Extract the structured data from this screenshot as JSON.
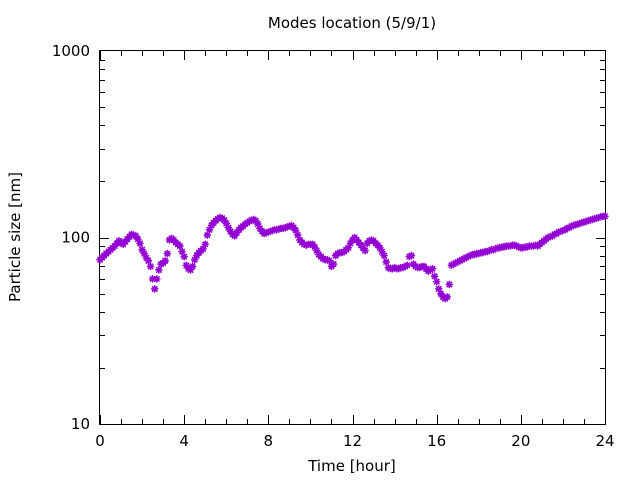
{
  "chart_data": {
    "type": "scatter",
    "title": "Modes location (5/9/1)",
    "xlabel": "Time [hour]",
    "ylabel": "Particle size [nm]",
    "xlim": [
      0,
      24
    ],
    "ylim": [
      10,
      1000
    ],
    "yscale": "log",
    "grid": false,
    "legend": "none",
    "color": "#9400d3",
    "xticks": [
      "0",
      "4",
      "8",
      "12",
      "16",
      "20",
      "24"
    ],
    "yticks": [
      "10",
      "100",
      "1000"
    ],
    "series": [
      {
        "points": [
          [
            0.0,
            76
          ],
          [
            0.1,
            78
          ],
          [
            0.2,
            80
          ],
          [
            0.3,
            82
          ],
          [
            0.4,
            84
          ],
          [
            0.5,
            86
          ],
          [
            0.6,
            88
          ],
          [
            0.7,
            90
          ],
          [
            0.8,
            93
          ],
          [
            0.9,
            96
          ],
          [
            1.0,
            94
          ],
          [
            1.1,
            92
          ],
          [
            1.2,
            95
          ],
          [
            1.3,
            98
          ],
          [
            1.4,
            101
          ],
          [
            1.5,
            104
          ],
          [
            1.6,
            103
          ],
          [
            1.7,
            102
          ],
          [
            1.8,
            98
          ],
          [
            1.9,
            93
          ],
          [
            2.0,
            86
          ],
          [
            2.1,
            82
          ],
          [
            2.2,
            78
          ],
          [
            2.3,
            75
          ],
          [
            2.4,
            70
          ],
          [
            2.5,
            60
          ],
          [
            2.6,
            53
          ],
          [
            2.7,
            60
          ],
          [
            2.8,
            67
          ],
          [
            2.9,
            72
          ],
          [
            3.0,
            73
          ],
          [
            3.1,
            75
          ],
          [
            3.2,
            82
          ],
          [
            3.3,
            97
          ],
          [
            3.4,
            99
          ],
          [
            3.5,
            97
          ],
          [
            3.6,
            94
          ],
          [
            3.7,
            92
          ],
          [
            3.8,
            90
          ],
          [
            3.9,
            84
          ],
          [
            4.0,
            79
          ],
          [
            4.1,
            71
          ],
          [
            4.2,
            68
          ],
          [
            4.3,
            67
          ],
          [
            4.4,
            70
          ],
          [
            4.5,
            76
          ],
          [
            4.6,
            80
          ],
          [
            4.7,
            83
          ],
          [
            4.8,
            85
          ],
          [
            4.9,
            87
          ],
          [
            5.0,
            92
          ],
          [
            5.1,
            103
          ],
          [
            5.2,
            110
          ],
          [
            5.3,
            116
          ],
          [
            5.4,
            120
          ],
          [
            5.5,
            123
          ],
          [
            5.6,
            126
          ],
          [
            5.7,
            128
          ],
          [
            5.8,
            127
          ],
          [
            5.9,
            124
          ],
          [
            6.0,
            119
          ],
          [
            6.1,
            113
          ],
          [
            6.2,
            108
          ],
          [
            6.3,
            104
          ],
          [
            6.4,
            102
          ],
          [
            6.5,
            106
          ],
          [
            6.6,
            110
          ],
          [
            6.7,
            113
          ],
          [
            6.8,
            115
          ],
          [
            6.9,
            118
          ],
          [
            7.0,
            120
          ],
          [
            7.1,
            122
          ],
          [
            7.2,
            124
          ],
          [
            7.3,
            125
          ],
          [
            7.4,
            123
          ],
          [
            7.5,
            118
          ],
          [
            7.6,
            112
          ],
          [
            7.7,
            108
          ],
          [
            7.8,
            105
          ],
          [
            7.9,
            106
          ],
          [
            8.0,
            107
          ],
          [
            8.1,
            108
          ],
          [
            8.2,
            109
          ],
          [
            8.3,
            110
          ],
          [
            8.4,
            110
          ],
          [
            8.5,
            111
          ],
          [
            8.6,
            112
          ],
          [
            8.7,
            112
          ],
          [
            8.8,
            113
          ],
          [
            8.9,
            114
          ],
          [
            9.0,
            115
          ],
          [
            9.1,
            116
          ],
          [
            9.2,
            113
          ],
          [
            9.3,
            109
          ],
          [
            9.4,
            103
          ],
          [
            9.5,
            97
          ],
          [
            9.6,
            94
          ],
          [
            9.7,
            92
          ],
          [
            9.8,
            91
          ],
          [
            9.9,
            92
          ],
          [
            10.0,
            92
          ],
          [
            10.1,
            92
          ],
          [
            10.2,
            89
          ],
          [
            10.3,
            85
          ],
          [
            10.4,
            81
          ],
          [
            10.5,
            79
          ],
          [
            10.6,
            77
          ],
          [
            10.7,
            76
          ],
          [
            10.8,
            76
          ],
          [
            10.9,
            75
          ],
          [
            11.0,
            70
          ],
          [
            11.1,
            72
          ],
          [
            11.2,
            80
          ],
          [
            11.3,
            82
          ],
          [
            11.4,
            83
          ],
          [
            11.5,
            83
          ],
          [
            11.6,
            84
          ],
          [
            11.7,
            86
          ],
          [
            11.8,
            88
          ],
          [
            11.9,
            93
          ],
          [
            12.0,
            97
          ],
          [
            12.1,
            100
          ],
          [
            12.2,
            97
          ],
          [
            12.3,
            94
          ],
          [
            12.4,
            91
          ],
          [
            12.5,
            88
          ],
          [
            12.6,
            85
          ],
          [
            12.7,
            93
          ],
          [
            12.8,
            96
          ],
          [
            12.9,
            97
          ],
          [
            13.0,
            96
          ],
          [
            13.1,
            93
          ],
          [
            13.2,
            91
          ],
          [
            13.3,
            88
          ],
          [
            13.4,
            84
          ],
          [
            13.5,
            80
          ],
          [
            13.6,
            74
          ],
          [
            13.7,
            69
          ],
          [
            13.8,
            68
          ],
          [
            13.9,
            68
          ],
          [
            14.0,
            69
          ],
          [
            14.1,
            68
          ],
          [
            14.2,
            68
          ],
          [
            14.3,
            69
          ],
          [
            14.4,
            69
          ],
          [
            14.5,
            70
          ],
          [
            14.6,
            71
          ],
          [
            14.7,
            79
          ],
          [
            14.8,
            80
          ],
          [
            14.9,
            72
          ],
          [
            15.0,
            70
          ],
          [
            15.1,
            69
          ],
          [
            15.2,
            69
          ],
          [
            15.3,
            70
          ],
          [
            15.4,
            70
          ],
          [
            15.5,
            68
          ],
          [
            15.6,
            66
          ],
          [
            15.7,
            67
          ],
          [
            15.8,
            68
          ],
          [
            15.9,
            62
          ],
          [
            16.0,
            58
          ],
          [
            16.1,
            53
          ],
          [
            16.2,
            50
          ],
          [
            16.3,
            48
          ],
          [
            16.4,
            47
          ],
          [
            16.5,
            48
          ],
          [
            16.6,
            56
          ],
          [
            16.7,
            71
          ],
          [
            16.8,
            72
          ],
          [
            16.9,
            73
          ],
          [
            17.0,
            74
          ],
          [
            17.1,
            75
          ],
          [
            17.2,
            76
          ],
          [
            17.3,
            77
          ],
          [
            17.4,
            78
          ],
          [
            17.5,
            79
          ],
          [
            17.6,
            80
          ],
          [
            17.7,
            81
          ],
          [
            17.8,
            81
          ],
          [
            17.9,
            82
          ],
          [
            18.0,
            82
          ],
          [
            18.1,
            83
          ],
          [
            18.2,
            83
          ],
          [
            18.3,
            84
          ],
          [
            18.4,
            84
          ],
          [
            18.5,
            85
          ],
          [
            18.6,
            86
          ],
          [
            18.7,
            86
          ],
          [
            18.8,
            87
          ],
          [
            18.9,
            88
          ],
          [
            19.0,
            88
          ],
          [
            19.1,
            89
          ],
          [
            19.2,
            89
          ],
          [
            19.3,
            90
          ],
          [
            19.4,
            90
          ],
          [
            19.5,
            90
          ],
          [
            19.6,
            91
          ],
          [
            19.7,
            91
          ],
          [
            19.8,
            90
          ],
          [
            19.9,
            89
          ],
          [
            20.0,
            88
          ],
          [
            20.1,
            88
          ],
          [
            20.2,
            89
          ],
          [
            20.3,
            89
          ],
          [
            20.4,
            90
          ],
          [
            20.5,
            90
          ],
          [
            20.6,
            90
          ],
          [
            20.7,
            91
          ],
          [
            20.8,
            90
          ],
          [
            20.9,
            92
          ],
          [
            21.0,
            94
          ],
          [
            21.1,
            96
          ],
          [
            21.2,
            98
          ],
          [
            21.3,
            100
          ],
          [
            21.4,
            101
          ],
          [
            21.5,
            102
          ],
          [
            21.6,
            104
          ],
          [
            21.7,
            105
          ],
          [
            21.8,
            107
          ],
          [
            21.9,
            108
          ],
          [
            22.0,
            109
          ],
          [
            22.1,
            110
          ],
          [
            22.2,
            112
          ],
          [
            22.3,
            113
          ],
          [
            22.4,
            115
          ],
          [
            22.5,
            116
          ],
          [
            22.6,
            117
          ],
          [
            22.7,
            118
          ],
          [
            22.8,
            119
          ],
          [
            22.9,
            120
          ],
          [
            23.0,
            121
          ],
          [
            23.1,
            122
          ],
          [
            23.2,
            123
          ],
          [
            23.3,
            124
          ],
          [
            23.4,
            125
          ],
          [
            23.5,
            126
          ],
          [
            23.6,
            127
          ],
          [
            23.7,
            128
          ],
          [
            23.8,
            129
          ],
          [
            23.9,
            130
          ],
          [
            24.0,
            130
          ]
        ]
      }
    ]
  }
}
